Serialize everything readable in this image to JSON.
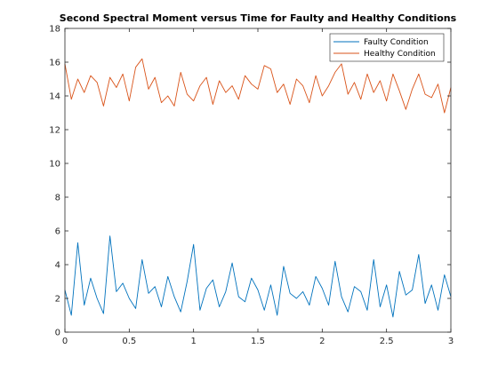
{
  "chart_data": {
    "type": "line",
    "title": "Second Spectral Moment versus Time for Faulty and Healthy Conditions",
    "xlabel": "",
    "ylabel": "",
    "xlim": [
      0,
      3
    ],
    "ylim": [
      0,
      18
    ],
    "x_ticks": [
      0,
      0.5,
      1,
      1.5,
      2,
      2.5,
      3
    ],
    "x_tick_labels": [
      "0",
      "0.5",
      "1",
      "1.5",
      "2",
      "2.5",
      "3"
    ],
    "y_ticks": [
      0,
      2,
      4,
      6,
      8,
      10,
      12,
      14,
      16,
      18
    ],
    "y_tick_labels": [
      "0",
      "2",
      "4",
      "6",
      "8",
      "10",
      "12",
      "14",
      "16",
      "18"
    ],
    "grid": false,
    "legend_position": "top-right",
    "series": [
      {
        "name": "Faulty Condition",
        "color": "#0072BD",
        "x": [
          0,
          0.05,
          0.1,
          0.15,
          0.2,
          0.25,
          0.3,
          0.35,
          0.4,
          0.45,
          0.5,
          0.55,
          0.6,
          0.65,
          0.7,
          0.75,
          0.8,
          0.85,
          0.9,
          0.95,
          1.0,
          1.05,
          1.1,
          1.15,
          1.2,
          1.25,
          1.3,
          1.35,
          1.4,
          1.45,
          1.5,
          1.55,
          1.6,
          1.65,
          1.7,
          1.75,
          1.8,
          1.85,
          1.9,
          1.95,
          2.0,
          2.05,
          2.1,
          2.15,
          2.2,
          2.25,
          2.3,
          2.35,
          2.4,
          2.45,
          2.5,
          2.55,
          2.6,
          2.65,
          2.7,
          2.75,
          2.8,
          2.85,
          2.9,
          2.95,
          3.0
        ],
        "values": [
          2.5,
          1.0,
          5.3,
          1.6,
          3.2,
          2.0,
          1.1,
          5.7,
          2.4,
          2.9,
          2.0,
          1.4,
          4.3,
          2.3,
          2.7,
          1.5,
          3.3,
          2.1,
          1.2,
          3.0,
          5.2,
          1.3,
          2.6,
          3.1,
          1.5,
          2.4,
          4.1,
          2.1,
          1.8,
          3.2,
          2.5,
          1.3,
          2.8,
          1.0,
          3.9,
          2.3,
          2.0,
          2.4,
          1.6,
          3.3,
          2.6,
          1.6,
          4.2,
          2.1,
          1.2,
          2.7,
          2.4,
          1.3,
          4.3,
          1.5,
          2.8,
          0.9,
          3.6,
          2.2,
          2.5,
          4.6,
          1.7,
          2.8,
          1.3,
          3.4,
          2.1
        ]
      },
      {
        "name": "Healthy Condition",
        "color": "#D95319",
        "x": [
          0,
          0.05,
          0.1,
          0.15,
          0.2,
          0.25,
          0.3,
          0.35,
          0.4,
          0.45,
          0.5,
          0.55,
          0.6,
          0.65,
          0.7,
          0.75,
          0.8,
          0.85,
          0.9,
          0.95,
          1.0,
          1.05,
          1.1,
          1.15,
          1.2,
          1.25,
          1.3,
          1.35,
          1.4,
          1.45,
          1.5,
          1.55,
          1.6,
          1.65,
          1.7,
          1.75,
          1.8,
          1.85,
          1.9,
          1.95,
          2.0,
          2.05,
          2.1,
          2.15,
          2.2,
          2.25,
          2.3,
          2.35,
          2.4,
          2.45,
          2.5,
          2.55,
          2.6,
          2.65,
          2.7,
          2.75,
          2.8,
          2.85,
          2.9,
          2.95,
          3.0
        ],
        "values": [
          15.9,
          13.8,
          15.0,
          14.2,
          15.2,
          14.8,
          13.4,
          15.1,
          14.5,
          15.3,
          13.7,
          15.7,
          16.2,
          14.4,
          15.1,
          13.6,
          14.0,
          13.4,
          15.4,
          14.1,
          13.7,
          14.6,
          15.1,
          13.5,
          14.9,
          14.2,
          14.6,
          13.8,
          15.2,
          14.7,
          14.4,
          15.8,
          15.6,
          14.2,
          14.7,
          13.5,
          15.0,
          14.6,
          13.6,
          15.2,
          14.0,
          14.6,
          15.4,
          15.9,
          14.1,
          14.8,
          13.8,
          15.3,
          14.2,
          14.9,
          13.7,
          15.3,
          14.3,
          13.2,
          14.4,
          15.3,
          14.1,
          13.9,
          14.7,
          13.0,
          14.5
        ]
      }
    ]
  }
}
